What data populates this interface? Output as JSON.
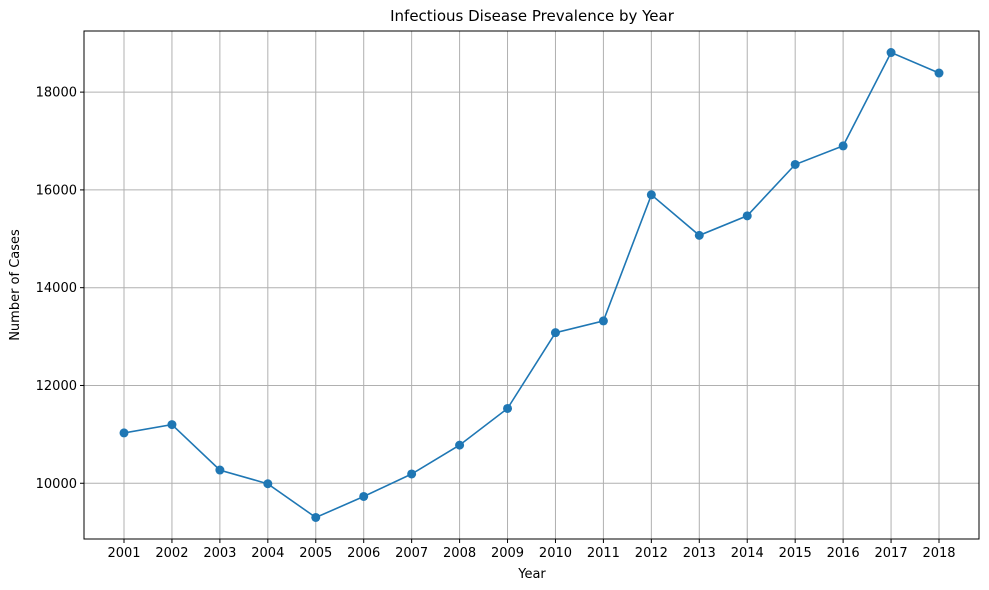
{
  "chart_data": {
    "type": "line",
    "title": "Infectious Disease Prevalence by Year",
    "xlabel": "Year",
    "ylabel": "Number of Cases",
    "x": [
      "2001",
      "2002",
      "2003",
      "2004",
      "2005",
      "2006",
      "2007",
      "2008",
      "2009",
      "2010",
      "2011",
      "2012",
      "2013",
      "2014",
      "2015",
      "2016",
      "2017",
      "2018"
    ],
    "series": [
      {
        "values": [
          11030,
          11200,
          10270,
          9990,
          9300,
          9730,
          10190,
          10780,
          11530,
          13080,
          13320,
          15900,
          15070,
          15470,
          16520,
          16900,
          18810,
          18390
        ]
      }
    ],
    "yticks": [
      10000,
      12000,
      14000,
      16000,
      18000
    ],
    "ylim": [
      8860,
      19250
    ],
    "grid": true,
    "marker": "circle",
    "colors": {
      "series": "#1f77b4",
      "grid": "#b0b0b0"
    }
  }
}
